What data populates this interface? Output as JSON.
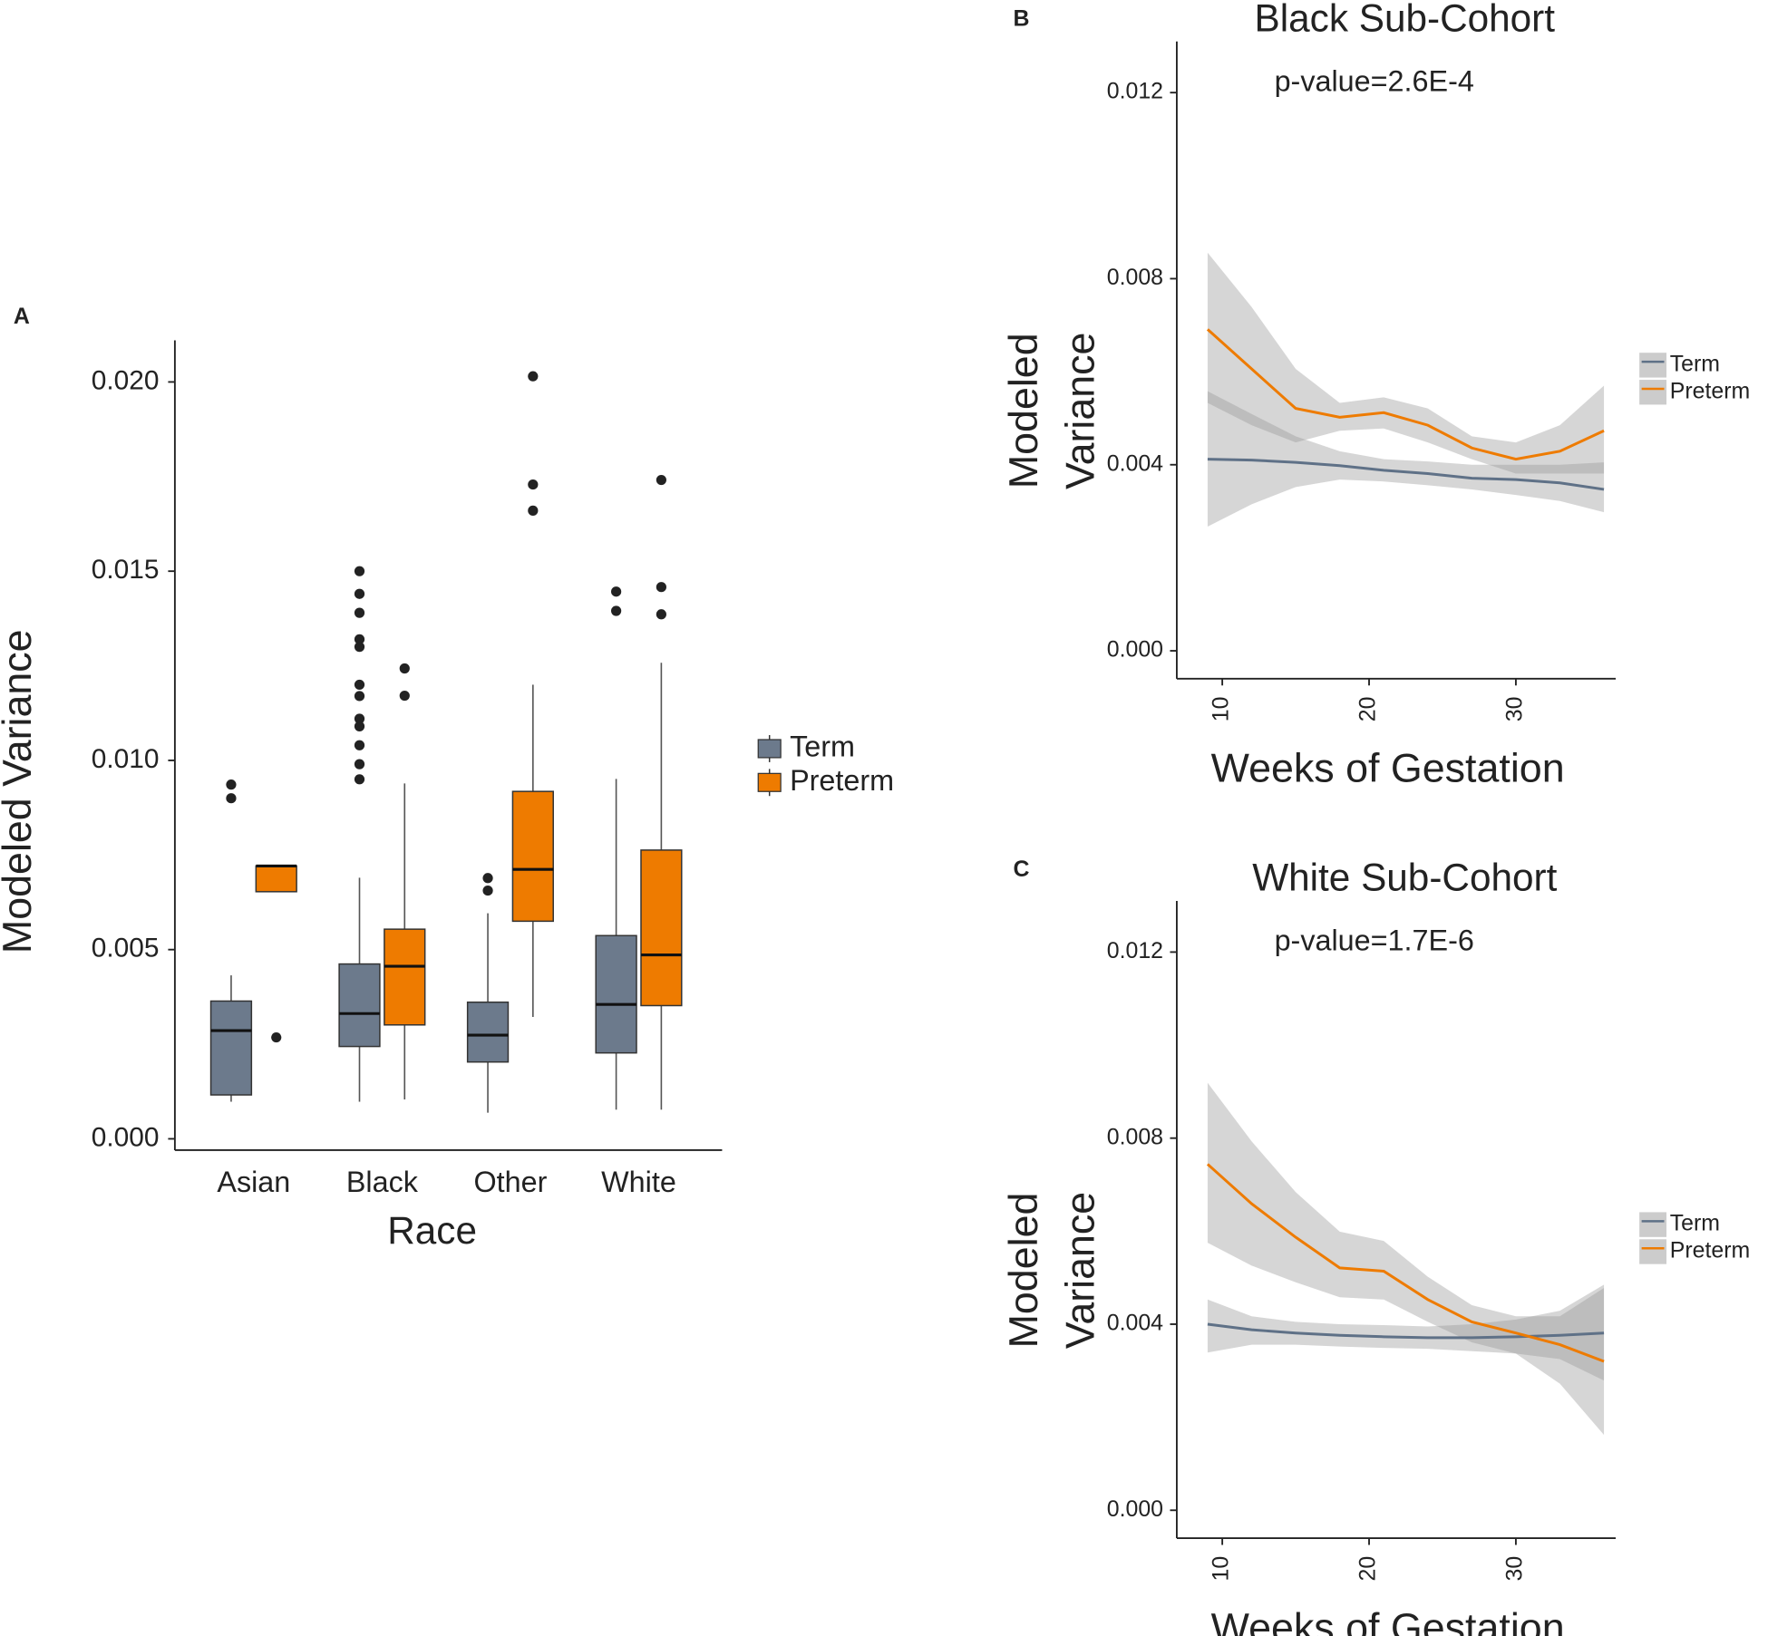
{
  "chart_data": [
    {
      "type": "box",
      "panel_label": "A",
      "xlabel": "Race",
      "ylabel": "Modeled Variance",
      "categories": [
        "Asian",
        "Black",
        "Other",
        "White"
      ],
      "ylim": [
        -0.0003,
        0.0211
      ],
      "yticks": [
        {
          "value": 0,
          "label": "0.000"
        },
        {
          "value": 0.005,
          "label": "0.005"
        },
        {
          "value": 0.01,
          "label": "0.010"
        },
        {
          "value": 0.015,
          "label": "0.015"
        },
        {
          "value": 0.02,
          "label": "0.020"
        }
      ],
      "series": [
        {
          "name": "Term",
          "color": "#6c7a8c",
          "boxes": [
            {
              "min": 0.00098,
              "q1": 0.00116,
              "median": 0.00286,
              "q3": 0.00364,
              "max": 0.00432,
              "outliers": [
                0.00936,
                0.009
              ]
            },
            {
              "min": 0.00098,
              "q1": 0.00244,
              "median": 0.00331,
              "q3": 0.00462,
              "max": 0.0069,
              "outliers": [
                0.015,
                0.0144,
                0.0139,
                0.0132,
                0.013,
                0.012,
                0.0117,
                0.0111,
                0.0109,
                0.0104,
                0.0099,
                0.0095
              ]
            },
            {
              "min": 0.00069,
              "q1": 0.00203,
              "median": 0.00274,
              "q3": 0.00361,
              "max": 0.00596,
              "outliers": [
                0.00689,
                0.00656
              ]
            },
            {
              "min": 0.00077,
              "q1": 0.00227,
              "median": 0.00355,
              "q3": 0.00537,
              "max": 0.00951,
              "outliers": [
                0.01446,
                0.01395
              ]
            }
          ]
        },
        {
          "name": "Preterm",
          "color": "#ee7b00",
          "boxes": [
            {
              "min": 0.00653,
              "q1": 0.00653,
              "median": 0.00721,
              "q3": 0.00721,
              "max": 0.00721,
              "outliers": [
                0.00268
              ]
            },
            {
              "min": 0.00104,
              "q1": 0.00301,
              "median": 0.00456,
              "q3": 0.00554,
              "max": 0.00939,
              "outliers": [
                0.01243,
                0.01171
              ]
            },
            {
              "min": 0.00322,
              "q1": 0.00575,
              "median": 0.00712,
              "q3": 0.00918,
              "max": 0.012,
              "outliers": [
                0.02015,
                0.01729,
                0.0166
              ]
            },
            {
              "min": 0.00077,
              "q1": 0.00352,
              "median": 0.00486,
              "q3": 0.00763,
              "max": 0.01258,
              "outliers": [
                0.01741,
                0.01458,
                0.01386
              ]
            }
          ]
        }
      ]
    },
    {
      "type": "line",
      "panel_label": "B",
      "title": "Black Sub-Cohort",
      "annotation": "p-value=2.6E-4",
      "xlabel": "Weeks of Gestation",
      "ylabel": [
        "Modeled",
        "Variance"
      ],
      "xlim": [
        6.9,
        36.8
      ],
      "xticks": [
        10,
        20,
        30
      ],
      "ylim": [
        -0.0006,
        0.0131
      ],
      "yticks": [
        {
          "value": 0,
          "label": "0.000"
        },
        {
          "value": 0.004,
          "label": "0.004"
        },
        {
          "value": 0.008,
          "label": "0.008"
        },
        {
          "value": 0.012,
          "label": "0.012"
        }
      ],
      "x": [
        9,
        12,
        15,
        18,
        21,
        24,
        27,
        30,
        33,
        36
      ],
      "series": [
        {
          "name": "Term",
          "color": "#5f7187",
          "values": [
            0.00412,
            0.0041,
            0.00405,
            0.00398,
            0.00388,
            0.00381,
            0.00371,
            0.00368,
            0.00361,
            0.00347
          ],
          "lower": [
            0.00267,
            0.00315,
            0.00352,
            0.00368,
            0.00364,
            0.00356,
            0.00347,
            0.00335,
            0.00322,
            0.00298
          ],
          "upper": [
            0.00558,
            0.00509,
            0.00461,
            0.00429,
            0.00412,
            0.00407,
            0.004,
            0.004,
            0.004,
            0.00405
          ]
        },
        {
          "name": "Preterm",
          "color": "#ee7b00",
          "values": [
            0.00691,
            0.00606,
            0.00521,
            0.00502,
            0.00512,
            0.00485,
            0.00436,
            0.00412,
            0.00429,
            0.00473
          ],
          "lower": [
            0.00533,
            0.00485,
            0.00448,
            0.00473,
            0.00478,
            0.00448,
            0.00412,
            0.00381,
            0.00381,
            0.00381
          ],
          "upper": [
            0.00856,
            0.00739,
            0.00606,
            0.00533,
            0.00545,
            0.00521,
            0.00461,
            0.00448,
            0.00485,
            0.0057
          ]
        }
      ]
    },
    {
      "type": "line",
      "panel_label": "C",
      "title": "White Sub-Cohort",
      "annotation": "p-value=1.7E-6",
      "xlabel": "Weeks of Gestation",
      "ylabel": [
        "Modeled",
        "Variance"
      ],
      "xlim": [
        6.9,
        36.8
      ],
      "xticks": [
        10,
        20,
        30
      ],
      "ylim": [
        -0.0006,
        0.0131
      ],
      "yticks": [
        {
          "value": 0,
          "label": "0.000"
        },
        {
          "value": 0.004,
          "label": "0.004"
        },
        {
          "value": 0.008,
          "label": "0.008"
        },
        {
          "value": 0.012,
          "label": "0.012"
        }
      ],
      "x": [
        9,
        12,
        15,
        18,
        21,
        24,
        27,
        30,
        33,
        36
      ],
      "series": [
        {
          "name": "Term",
          "color": "#5f7187",
          "values": [
            0.004,
            0.00388,
            0.00381,
            0.00376,
            0.00373,
            0.00371,
            0.00371,
            0.00373,
            0.00376,
            0.00381
          ],
          "lower": [
            0.00339,
            0.00356,
            0.00356,
            0.00352,
            0.00349,
            0.00347,
            0.00342,
            0.00337,
            0.00325,
            0.00279
          ],
          "upper": [
            0.00453,
            0.00417,
            0.00405,
            0.004,
            0.00398,
            0.00395,
            0.004,
            0.0041,
            0.00429,
            0.00485
          ]
        },
        {
          "name": "Preterm",
          "color": "#ee7b00",
          "values": [
            0.00744,
            0.00659,
            0.00587,
            0.00521,
            0.00514,
            0.00453,
            0.00405,
            0.00381,
            0.00356,
            0.0032
          ],
          "lower": [
            0.00575,
            0.00526,
            0.0049,
            0.00458,
            0.00453,
            0.00405,
            0.00361,
            0.00337,
            0.00272,
            0.00162
          ],
          "upper": [
            0.00919,
            0.00793,
            0.00684,
            0.00599,
            0.00579,
            0.00502,
            0.00441,
            0.00417,
            0.00417,
            0.00478
          ]
        }
      ]
    }
  ]
}
